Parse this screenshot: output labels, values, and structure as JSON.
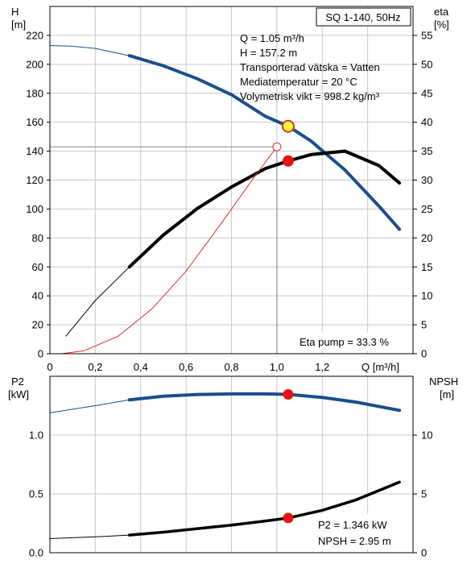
{
  "chart_data": [
    {
      "type": "line",
      "title": "SQ 1-140, 50Hz",
      "left_axis_label_line1": "H",
      "left_axis_label_line2": "[m]",
      "right_axis_label_line1": "eta",
      "right_axis_label_line2": "[%]",
      "xlabel": "Q [m³/h]",
      "xlim": [
        0,
        1.6
      ],
      "ylim_left": [
        0,
        240
      ],
      "ylim_right": [
        0,
        60
      ],
      "x_ticks": [
        "0",
        "0,2",
        "0,4",
        "0,6",
        "0,8",
        "1,0",
        "1,2",
        "1,4"
      ],
      "y_ticks_left": [
        "0",
        "20",
        "40",
        "60",
        "80",
        "100",
        "120",
        "140",
        "160",
        "180",
        "200",
        "220"
      ],
      "y_ticks_right": [
        "0",
        "5",
        "10",
        "15",
        "20",
        "25",
        "30",
        "35",
        "40",
        "45",
        "50",
        "55"
      ],
      "grid": true,
      "info": [
        "Q = 1.05 m³/h",
        "H = 157.2 m",
        "Transporterad vätska = Vatten",
        "Mediatemperatur = 20 °C",
        "Volymetrisk vikt = 998.2 kg/m³"
      ],
      "eta_pump_label": "Eta pump = 33.3 %",
      "series": [
        {
          "axis": "left",
          "color": "#1a4f8a",
          "x": [
            0,
            0.1,
            0.2,
            0.35,
            0.5,
            0.65,
            0.8,
            0.95,
            1.05,
            1.15,
            1.3,
            1.45,
            1.54
          ],
          "y": [
            213,
            212.5,
            211,
            206,
            199,
            190,
            179,
            164,
            157.2,
            147,
            127,
            102,
            86
          ]
        },
        {
          "axis": "right",
          "color": "#000000",
          "x": [
            0.07,
            0.2,
            0.35,
            0.5,
            0.65,
            0.8,
            0.95,
            1.05,
            1.15,
            1.3,
            1.45,
            1.54
          ],
          "y": [
            3,
            9.2,
            15,
            20.5,
            25.1,
            28.8,
            32,
            33.3,
            34.4,
            35,
            32.5,
            29.5
          ]
        },
        {
          "axis": "left",
          "color": "#e03030",
          "x": [
            0.05,
            0.15,
            0.3,
            0.45,
            0.6,
            0.75,
            0.9,
            1.0
          ],
          "y": [
            0,
            2,
            12,
            31,
            57,
            89,
            122,
            143
          ]
        }
      ],
      "duty_points": [
        {
          "x": 1.05,
          "y": 157.2,
          "axis": "left",
          "fill": "#ffff33",
          "stroke": "#e03030"
        },
        {
          "x": 1.05,
          "y": 33.3,
          "axis": "right",
          "fill": "#ee1111",
          "stroke": "#ee1111"
        }
      ],
      "hollow_point": {
        "x": 1.0,
        "y": 143,
        "axis": "left"
      }
    },
    {
      "type": "line",
      "left_axis_label_line1": "P2",
      "left_axis_label_line2": "[kW]",
      "right_axis_label_line1": "NPSH",
      "right_axis_label_line2": "[m]",
      "xlim": [
        0,
        1.6
      ],
      "ylim_left": [
        0,
        1.5
      ],
      "ylim_right": [
        0,
        15
      ],
      "y_ticks_left": [
        "0.0",
        "0.5",
        "1.0"
      ],
      "y_ticks_right": [
        "0",
        "5",
        "10"
      ],
      "grid": true,
      "annotation_lines": [
        "P2 = 1.346 kW",
        "NPSH = 2.95 m"
      ],
      "series": [
        {
          "axis": "left",
          "color": "#1a4f8a",
          "x": [
            0,
            0.2,
            0.35,
            0.5,
            0.65,
            0.8,
            0.95,
            1.05,
            1.2,
            1.35,
            1.54
          ],
          "y": [
            1.19,
            1.25,
            1.3,
            1.33,
            1.345,
            1.35,
            1.35,
            1.346,
            1.32,
            1.28,
            1.21
          ]
        },
        {
          "axis": "right",
          "color": "#000000",
          "x": [
            0,
            0.2,
            0.35,
            0.5,
            0.65,
            0.8,
            0.95,
            1.05,
            1.2,
            1.35,
            1.54
          ],
          "y": [
            1.2,
            1.35,
            1.5,
            1.75,
            2.05,
            2.35,
            2.7,
            2.95,
            3.6,
            4.5,
            6.0
          ]
        }
      ],
      "duty_points": [
        {
          "x": 1.05,
          "y": 1.346,
          "axis": "left",
          "fill": "#ee1111",
          "stroke": "#ee1111"
        },
        {
          "x": 1.05,
          "y": 2.95,
          "axis": "right",
          "fill": "#ee1111",
          "stroke": "#ee1111"
        }
      ]
    }
  ]
}
